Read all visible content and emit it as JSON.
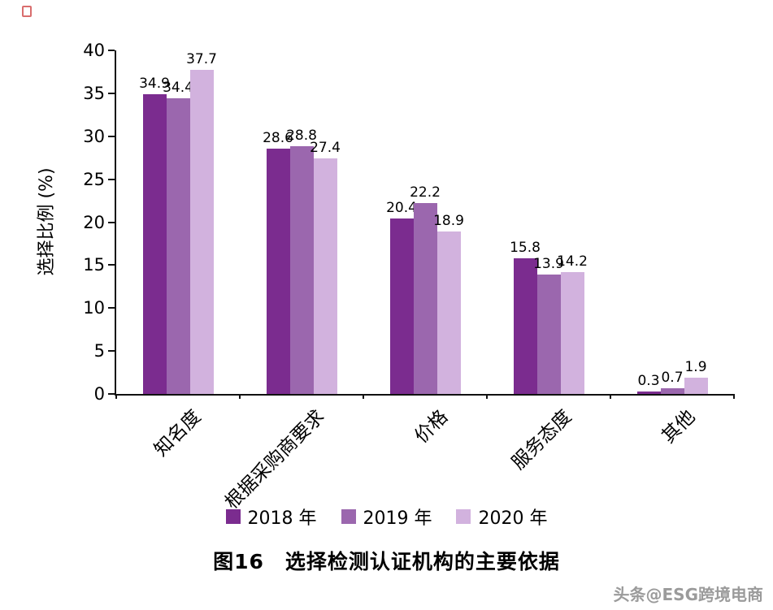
{
  "chart_data": {
    "type": "bar",
    "title": "图16　选择检测认证机构的主要依据",
    "xlabel": "",
    "ylabel": "选择比例 (%)",
    "ylim": [
      0,
      40
    ],
    "yticks": [
      0,
      5,
      10,
      15,
      20,
      25,
      30,
      35,
      40
    ],
    "grid": false,
    "legend_position": "bottom",
    "categories": [
      "知名度",
      "根据采购商要求",
      "价格",
      "服务态度",
      "其他"
    ],
    "series": [
      {
        "name": "2018 年",
        "color": "#7b2c8f",
        "values": [
          34.9,
          28.6,
          20.4,
          15.8,
          0.3
        ]
      },
      {
        "name": "2019 年",
        "color": "#9b67ae",
        "values": [
          34.4,
          28.8,
          22.2,
          13.9,
          0.7
        ]
      },
      {
        "name": "2020 年",
        "color": "#d2b2de",
        "values": [
          37.7,
          27.4,
          18.9,
          14.2,
          1.9
        ]
      }
    ]
  },
  "watermark": "头条@ESG跨境电商"
}
